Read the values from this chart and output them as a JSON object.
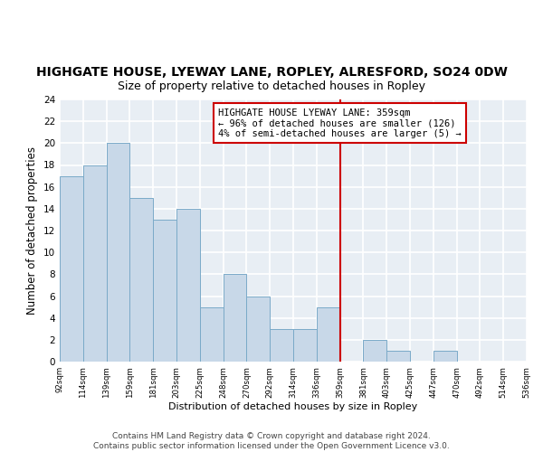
{
  "title": "HIGHGATE HOUSE, LYEWAY LANE, ROPLEY, ALRESFORD, SO24 0DW",
  "subtitle": "Size of property relative to detached houses in Ropley",
  "xlabel": "Distribution of detached houses by size in Ropley",
  "ylabel": "Number of detached properties",
  "bar_color": "#c8d8e8",
  "bar_edge_color": "#7aaac8",
  "bin_labels": [
    "92sqm",
    "114sqm",
    "139sqm",
    "159sqm",
    "181sqm",
    "203sqm",
    "225sqm",
    "248sqm",
    "270sqm",
    "292sqm",
    "314sqm",
    "336sqm",
    "359sqm",
    "381sqm",
    "403sqm",
    "425sqm",
    "447sqm",
    "470sqm",
    "492sqm",
    "514sqm",
    "536sqm"
  ],
  "bar_heights": [
    17,
    18,
    20,
    15,
    13,
    14,
    5,
    8,
    6,
    3,
    3,
    5,
    0,
    2,
    1,
    0,
    1,
    0,
    0,
    0
  ],
  "red_line_bin": 12,
  "red_line_color": "#cc0000",
  "annotation_box_color": "#cc0000",
  "annotation_lines": [
    "HIGHGATE HOUSE LYEWAY LANE: 359sqm",
    "← 96% of detached houses are smaller (126)",
    "4% of semi-detached houses are larger (5) →"
  ],
  "ylim": [
    0,
    24
  ],
  "ytick_step": 2,
  "background_color": "#e8eef4",
  "grid_color": "#ffffff",
  "footer_text": "Contains HM Land Registry data © Crown copyright and database right 2024.\nContains public sector information licensed under the Open Government Licence v3.0.",
  "title_fontsize": 10,
  "subtitle_fontsize": 9,
  "ylabel_fontsize": 8.5,
  "xlabel_fontsize": 8,
  "annotation_fontsize": 7.5,
  "footer_fontsize": 6.5
}
